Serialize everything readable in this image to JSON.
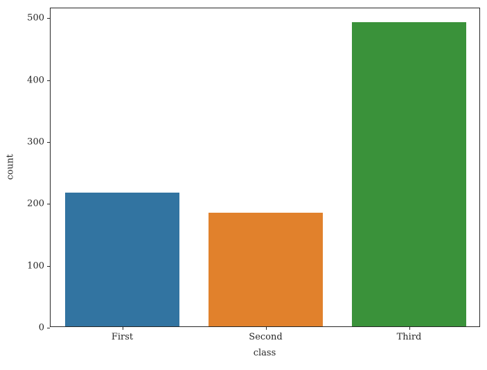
{
  "figure": {
    "background": "#ffffff",
    "text_color": "#262626",
    "spine_color": "#262626"
  },
  "chart_data": {
    "type": "bar",
    "title": "",
    "categories": [
      "First",
      "Second",
      "Third"
    ],
    "values": [
      216,
      184,
      491
    ],
    "xlabel": "class",
    "ylabel": "count",
    "ylim": [
      0,
      516
    ],
    "yticks": [
      0,
      100,
      200,
      300,
      400,
      500
    ],
    "bar_colors": [
      "#3274a1",
      "#e1812c",
      "#3a923a"
    ],
    "bar_width_fraction": 0.8,
    "grid": "off",
    "legend": "none"
  }
}
